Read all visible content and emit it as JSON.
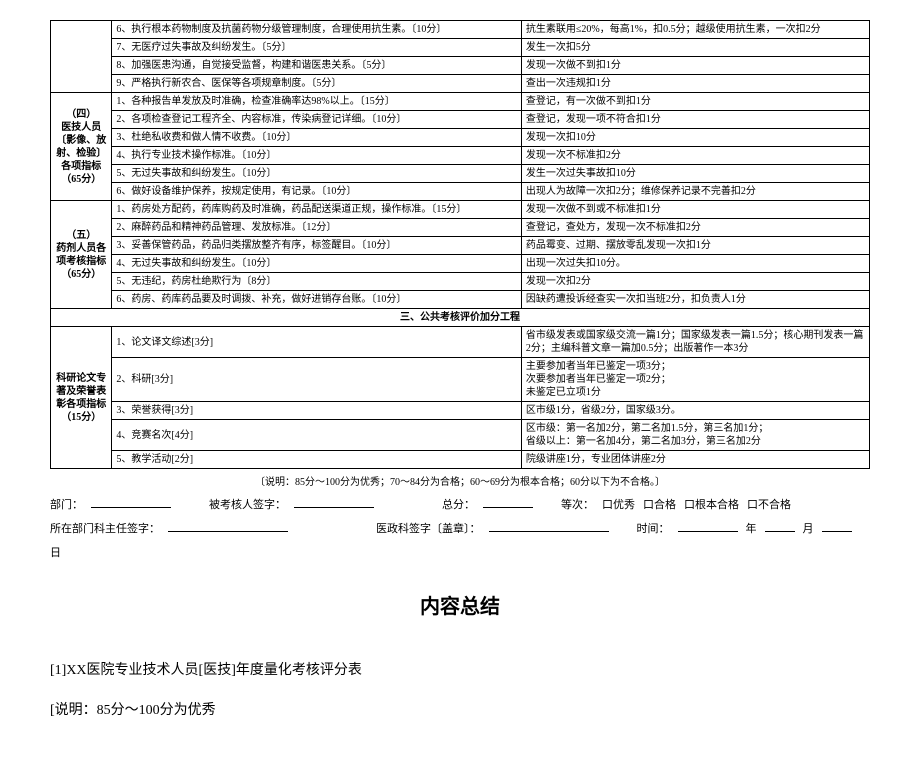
{
  "table_top": {
    "rows": [
      {
        "item": "6、执行根本药物制度及抗菌药物分级管理制度，合理使用抗生素。〔10分〕",
        "crit": "抗生素联用≤20%，每高1%，扣0.5分；越级使用抗生素，一次扣2分"
      },
      {
        "item": "7、无医疗过失事故及纠纷发生。〔5分〕",
        "crit": "发生一次扣5分"
      },
      {
        "item": "8、加强医患沟通，自觉接受监督，构建和谐医患关系。〔5分〕",
        "crit": "发现一次做不到扣1分"
      },
      {
        "item": "9、严格执行新农合、医保等各项规章制度。〔5分〕",
        "crit": "查出一次违规扣1分"
      }
    ]
  },
  "cat4": {
    "label": "（四）\n医技人员〔影像、放射、检验〕各项指标\n（65分）",
    "rows": [
      {
        "item": "1、各种报告单发放及时准确，检查准确率达98%以上。〔15分〕",
        "crit": "查登记，有一次做不到扣1分"
      },
      {
        "item": "2、各项检查登记工程齐全、内容标准，传染病登记详细。〔10分〕",
        "crit": "查登记，发现一项不符合扣1分"
      },
      {
        "item": "3、杜绝私收费和做人情不收费。〔10分〕",
        "crit": "发现一次扣10分"
      },
      {
        "item": "4、执行专业技术操作标准。〔10分〕",
        "crit": "发现一次不标准扣2分"
      },
      {
        "item": "5、无过失事故和纠纷发生。〔10分〕",
        "crit": "发生一次过失事故扣10分"
      },
      {
        "item": "6、做好设备维护保养，按规定使用，有记录。〔10分〕",
        "crit": "出现人为故障一次扣2分；维修保养记录不完善扣2分"
      }
    ]
  },
  "cat5": {
    "label": "（五）\n药剂人员各项考核指标\n（65分）",
    "rows": [
      {
        "item": "1、药房处方配药，药库购药及时准确，药品配送渠道正规，操作标准。〔15分〕",
        "crit": "发现一次做不到或不标准扣1分"
      },
      {
        "item": "2、麻醉药品和精神药品管理、发放标准。〔12分〕",
        "crit": "查登记，查处方，发现一次不标准扣2分"
      },
      {
        "item": "3、妥善保管药品，药品归类摆放整齐有序，标签醒目。〔10分〕",
        "crit": "药品霉变、过期、摆放零乱发现一次扣1分"
      },
      {
        "item": "4、无过失事故和纠纷发生。〔10分〕",
        "crit": "出现一次过失扣10分。"
      },
      {
        "item": "5、无违纪，药房杜绝欺行为〔8分〕",
        "crit": "发现一次扣2分"
      },
      {
        "item": "6、药房、药库药品要及时调拨、补充，做好进销存台账。〔10分〕",
        "crit": "因缺药遭投诉经查实一次扣当班2分，扣负责人1分"
      }
    ]
  },
  "section3_header": "三、公共考核评价加分工程",
  "cat_research": {
    "label": "科研论文专著及荣誉表彰各项指标\n（15分）",
    "rows": [
      {
        "item": "1、论文译文综述[3分]",
        "crit": "省市级发表或国家级交流一篇1分；国家级发表一篇1.5分；核心期刊发表一篇2分；主编科普文章一篇加0.5分；出版著作一本3分"
      },
      {
        "item": "2、科研[3分]",
        "crit": "主要参加者当年已鉴定一项3分；\n次要参加者当年已鉴定一项2分；\n未鉴定已立项1分"
      },
      {
        "item": "3、荣誉获得[3分]",
        "crit": "区市级1分，省级2分，国家级3分。"
      },
      {
        "item": "4、竞赛名次[4分]",
        "crit": "区市级：第一名加2分，第二名加1.5分，第三名加1分；\n省级以上：第一名加4分，第二名加3分，第三名加2分"
      },
      {
        "item": "5、教学活动[2分]",
        "crit": "院级讲座1分，专业团体讲座2分"
      }
    ]
  },
  "note": "〔说明：85分～100分为优秀；70～84分为合格；60～69分为根本合格；60分以下为不合格。〕",
  "sig1": {
    "dept": "部门：",
    "assessed": "被考核人签字：",
    "total": "总分：",
    "level": "等次：",
    "opts": [
      "口优秀",
      "口合格",
      "口根本合格",
      "口不合格"
    ]
  },
  "sig2": {
    "head": "所在部门科主任签字：",
    "medadmin": "医政科签字〔盖章〕：",
    "time": "时间：",
    "year": "年",
    "month": "月",
    "day": "日"
  },
  "summary": {
    "title": "内容总结",
    "lines": [
      "[1]XX医院专业技术人员[医技]年度量化考核评分表",
      "[说明：85分～100分为优秀"
    ]
  }
}
